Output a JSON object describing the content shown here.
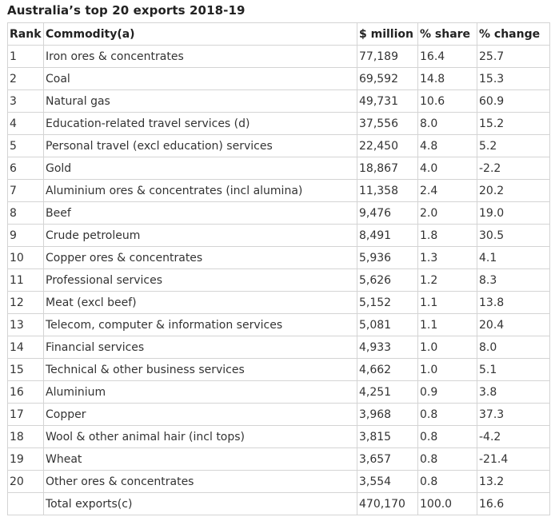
{
  "title": "Australia’s top 20 exports 2018-19",
  "table": {
    "headers": [
      "Rank",
      "Commodity(a)",
      "$ million",
      "% share",
      "% change"
    ],
    "rows": [
      [
        "1",
        "Iron ores & concentrates",
        "77,189",
        "16.4",
        "25.7"
      ],
      [
        "2",
        "Coal",
        "69,592",
        "14.8",
        "15.3"
      ],
      [
        "3",
        "Natural gas",
        "49,731",
        "10.6",
        "60.9"
      ],
      [
        "4",
        "Education-related travel services (d)",
        "37,556",
        "8.0",
        "15.2"
      ],
      [
        "5",
        "Personal travel (excl education) services",
        "22,450",
        "4.8",
        "5.2"
      ],
      [
        "6",
        "Gold",
        "18,867",
        "4.0",
        "-2.2"
      ],
      [
        "7",
        "Aluminium ores & concentrates (incl alumina)",
        "11,358",
        "2.4",
        "20.2"
      ],
      [
        "8",
        "Beef",
        "9,476",
        "2.0",
        "19.0"
      ],
      [
        "9",
        "Crude petroleum",
        "8,491",
        "1.8",
        "30.5"
      ],
      [
        "10",
        "Copper ores & concentrates",
        "5,936",
        "1.3",
        "4.1"
      ],
      [
        "11",
        "Professional services",
        "5,626",
        "1.2",
        "8.3"
      ],
      [
        "12",
        "Meat (excl beef)",
        "5,152",
        "1.1",
        "13.8"
      ],
      [
        "13",
        "Telecom, computer & information services",
        "5,081",
        "1.1",
        "20.4"
      ],
      [
        "14",
        "Financial services",
        "4,933",
        "1.0",
        "8.0"
      ],
      [
        "15",
        "Technical & other business services",
        "4,662",
        "1.0",
        "5.1"
      ],
      [
        "16",
        "Aluminium",
        "4,251",
        "0.9",
        "3.8"
      ],
      [
        "17",
        "Copper",
        "3,968",
        "0.8",
        "37.3"
      ],
      [
        "18",
        "Wool & other animal hair (incl tops)",
        "3,815",
        "0.8",
        "-4.2"
      ],
      [
        "19",
        "Wheat",
        "3,657",
        "0.8",
        "-21.4"
      ],
      [
        "20",
        "Other ores & concentrates",
        "3,554",
        "0.8",
        "13.2"
      ],
      [
        "",
        "Total exports(c)",
        "470,170",
        "100.0",
        "16.6"
      ]
    ]
  }
}
